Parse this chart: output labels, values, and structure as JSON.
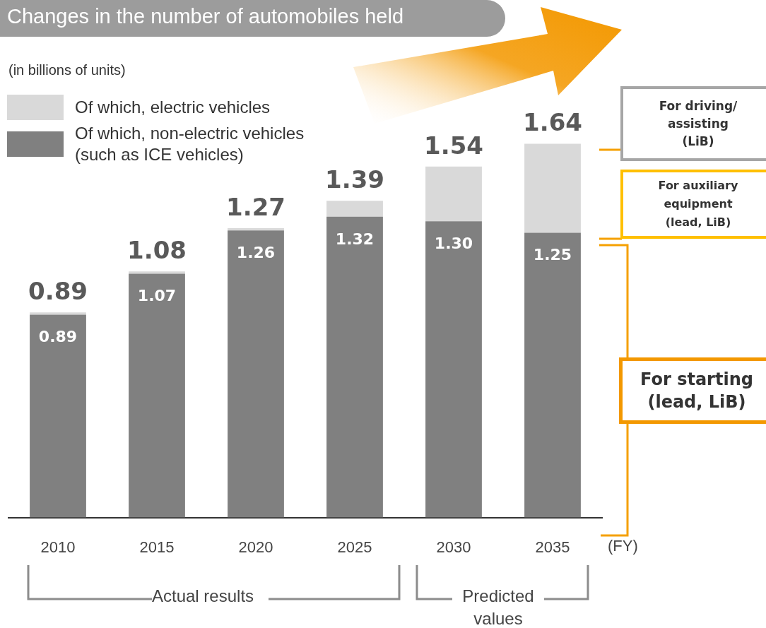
{
  "chart_data": {
    "type": "bar",
    "stacked": true,
    "title": "Changes in the number of automobiles held",
    "categories": [
      "2010",
      "2015",
      "2020",
      "2025",
      "2030",
      "2035"
    ],
    "xlabel": "(FY)",
    "series": [
      {
        "name": "Of which, non-electric vehicles\n(such as ICE vehicles)",
        "color": "#808080",
        "values": [
          0.89,
          1.07,
          1.26,
          1.32,
          1.3,
          1.25
        ],
        "value_labels": [
          "0.89",
          "1.07",
          "1.26",
          "1.32",
          "1.30",
          "1.25"
        ]
      },
      {
        "name": "Of which, electric vehicles",
        "color": "#d9d9d9",
        "values": [
          0.01,
          0.01,
          0.01,
          0.07,
          0.24,
          0.39
        ]
      }
    ],
    "totals": [
      "0.89",
      "1.08",
      "1.27",
      "1.39",
      "1.54",
      "1.64"
    ],
    "tick_labels": "x",
    "grid": false,
    "legend": "top left",
    "annotations": [
      "(in billions of units)",
      "Actual results",
      "Predicted values",
      "For driving/\nassisting\n(LiB)",
      "For auxiliary\nequipment\n(lead, LiB)",
      "For starting\n(lead, LiB)"
    ]
  }
}
